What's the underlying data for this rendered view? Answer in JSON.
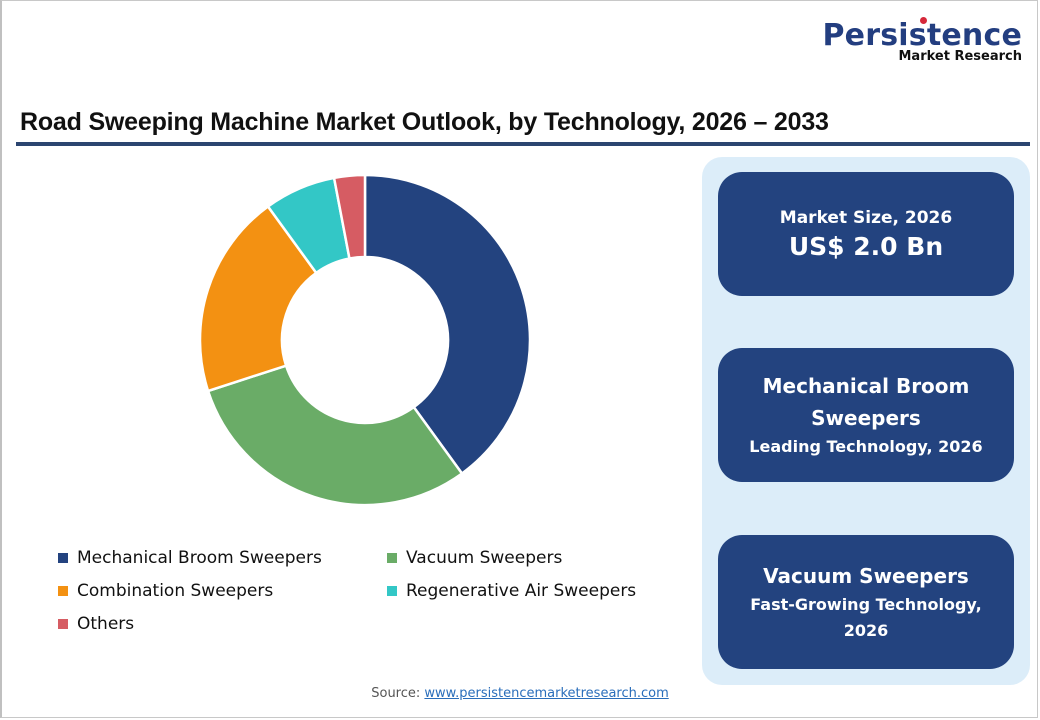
{
  "logo": {
    "main": "Persistence",
    "sub": "Market Research"
  },
  "title": "Road Sweeping Machine Market Outlook, by Technology, 2026 – 2033",
  "chart_data": {
    "type": "pie",
    "style": "donut",
    "title": "Road Sweeping Machine Market Outlook, by Technology, 2026 – 2033",
    "categories": [
      "Mechanical Broom Sweepers",
      "Vacuum Sweepers",
      "Combination Sweepers",
      "Regenerative Air Sweepers",
      "Others"
    ],
    "values": [
      40,
      30,
      20,
      7,
      3
    ],
    "unit": "% share (estimated from slice angles)",
    "colors": [
      "#23437f",
      "#6aac67",
      "#f39112",
      "#33c7c6",
      "#d65c63"
    ],
    "legend_position": "bottom",
    "start_angle": "12 o'clock, clockwise"
  },
  "legend": [
    {
      "label": "Mechanical Broom Sweepers",
      "color": "#23437f"
    },
    {
      "label": "Vacuum Sweepers",
      "color": "#6aac67"
    },
    {
      "label": "Combination Sweepers",
      "color": "#f39112"
    },
    {
      "label": "Regenerative Air Sweepers",
      "color": "#33c7c6"
    },
    {
      "label": "Others",
      "color": "#d65c63"
    }
  ],
  "cards": {
    "market_size": {
      "label": "Market Size, 2026",
      "value": "US$ 2.0 Bn"
    },
    "leading": {
      "heading": "Mechanical Broom Sweepers",
      "sub": "Leading Technology, 2026"
    },
    "fastest": {
      "heading": "Vacuum Sweepers",
      "sub": "Fast-Growing Technology, 2026"
    }
  },
  "source": {
    "label": "Source:",
    "link": "www.persistencemarketresearch.com"
  }
}
